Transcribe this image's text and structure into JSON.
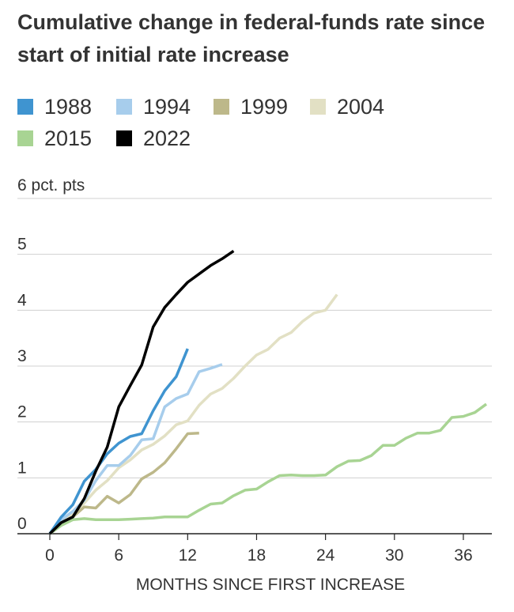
{
  "title": "Cumulative change in federal-funds rate since start of initial rate increase",
  "legend": [
    {
      "label": "1988",
      "color": "#3f94d0"
    },
    {
      "label": "1994",
      "color": "#a7cdec"
    },
    {
      "label": "1999",
      "color": "#bdb88a"
    },
    {
      "label": "2004",
      "color": "#e2e0c4"
    },
    {
      "label": "2015",
      "color": "#a8d493"
    },
    {
      "label": "2022",
      "color": "#000000"
    }
  ],
  "chart_data": {
    "type": "line",
    "title": "Cumulative change in federal-funds rate since start of initial rate increase",
    "xlabel": "MONTHS SINCE FIRST INCREASE",
    "ylabel": "pct. pts",
    "y_unit_label": "6 pct. pts",
    "xlim": [
      0,
      38
    ],
    "ylim": [
      0,
      6
    ],
    "x_ticks": [
      0,
      6,
      12,
      18,
      24,
      30,
      36
    ],
    "y_ticks": [
      0,
      1,
      2,
      3,
      4,
      5,
      6
    ],
    "grid": "horizontal",
    "series": [
      {
        "name": "1988",
        "color": "#3f94d0",
        "x": [
          0,
          1,
          2,
          3,
          4,
          5,
          6,
          7,
          8,
          9,
          10,
          11,
          12
        ],
        "y": [
          0,
          0.3,
          0.52,
          0.94,
          1.15,
          1.43,
          1.62,
          1.74,
          1.79,
          2.2,
          2.56,
          2.81,
          3.31
        ]
      },
      {
        "name": "1994",
        "color": "#a7cdec",
        "x": [
          0,
          1,
          2,
          3,
          4,
          5,
          6,
          7,
          8,
          9,
          10,
          11,
          12,
          13,
          14,
          15
        ],
        "y": [
          0,
          0.25,
          0.4,
          0.6,
          0.95,
          1.22,
          1.22,
          1.4,
          1.68,
          1.7,
          2.27,
          2.42,
          2.5,
          2.9,
          2.96,
          3.03
        ]
      },
      {
        "name": "1999",
        "color": "#bdb88a",
        "x": [
          0,
          1,
          2,
          3,
          4,
          5,
          6,
          7,
          8,
          9,
          10,
          11,
          12,
          13
        ],
        "y": [
          0,
          0.2,
          0.3,
          0.48,
          0.46,
          0.67,
          0.55,
          0.7,
          0.98,
          1.1,
          1.27,
          1.52,
          1.79,
          1.8
        ]
      },
      {
        "name": "2004",
        "color": "#e2e0c4",
        "x": [
          0,
          1,
          2,
          3,
          4,
          5,
          6,
          7,
          8,
          9,
          10,
          11,
          12,
          13,
          14,
          15,
          16,
          17,
          18,
          19,
          20,
          21,
          22,
          23,
          24,
          25
        ],
        "y": [
          0,
          0.22,
          0.35,
          0.55,
          0.78,
          0.95,
          1.18,
          1.32,
          1.5,
          1.6,
          1.75,
          1.95,
          2.02,
          2.3,
          2.5,
          2.6,
          2.78,
          3.0,
          3.2,
          3.3,
          3.5,
          3.6,
          3.8,
          3.95,
          4.0,
          4.28
        ]
      },
      {
        "name": "2015",
        "color": "#a8d493",
        "x": [
          0,
          1,
          2,
          3,
          4,
          5,
          6,
          7,
          8,
          9,
          10,
          11,
          12,
          13,
          14,
          15,
          16,
          17,
          18,
          19,
          20,
          21,
          22,
          23,
          24,
          25,
          26,
          27,
          28,
          29,
          30,
          31,
          32,
          33,
          34,
          35,
          36,
          37,
          38
        ],
        "y": [
          0,
          0.15,
          0.25,
          0.27,
          0.25,
          0.25,
          0.25,
          0.26,
          0.27,
          0.28,
          0.3,
          0.3,
          0.3,
          0.42,
          0.53,
          0.55,
          0.68,
          0.78,
          0.8,
          0.93,
          1.04,
          1.05,
          1.04,
          1.04,
          1.05,
          1.2,
          1.3,
          1.31,
          1.4,
          1.58,
          1.58,
          1.71,
          1.8,
          1.8,
          1.85,
          2.08,
          2.1,
          2.17,
          2.32
        ]
      },
      {
        "name": "2022",
        "color": "#000000",
        "x": [
          0,
          1,
          2,
          3,
          4,
          5,
          6,
          7,
          8,
          9,
          10,
          11,
          12,
          13,
          14,
          15,
          16
        ],
        "y": [
          0,
          0.2,
          0.3,
          0.63,
          1.12,
          1.55,
          2.27,
          2.65,
          3.02,
          3.7,
          4.05,
          4.28,
          4.5,
          4.65,
          4.8,
          4.92,
          5.06
        ]
      }
    ]
  }
}
